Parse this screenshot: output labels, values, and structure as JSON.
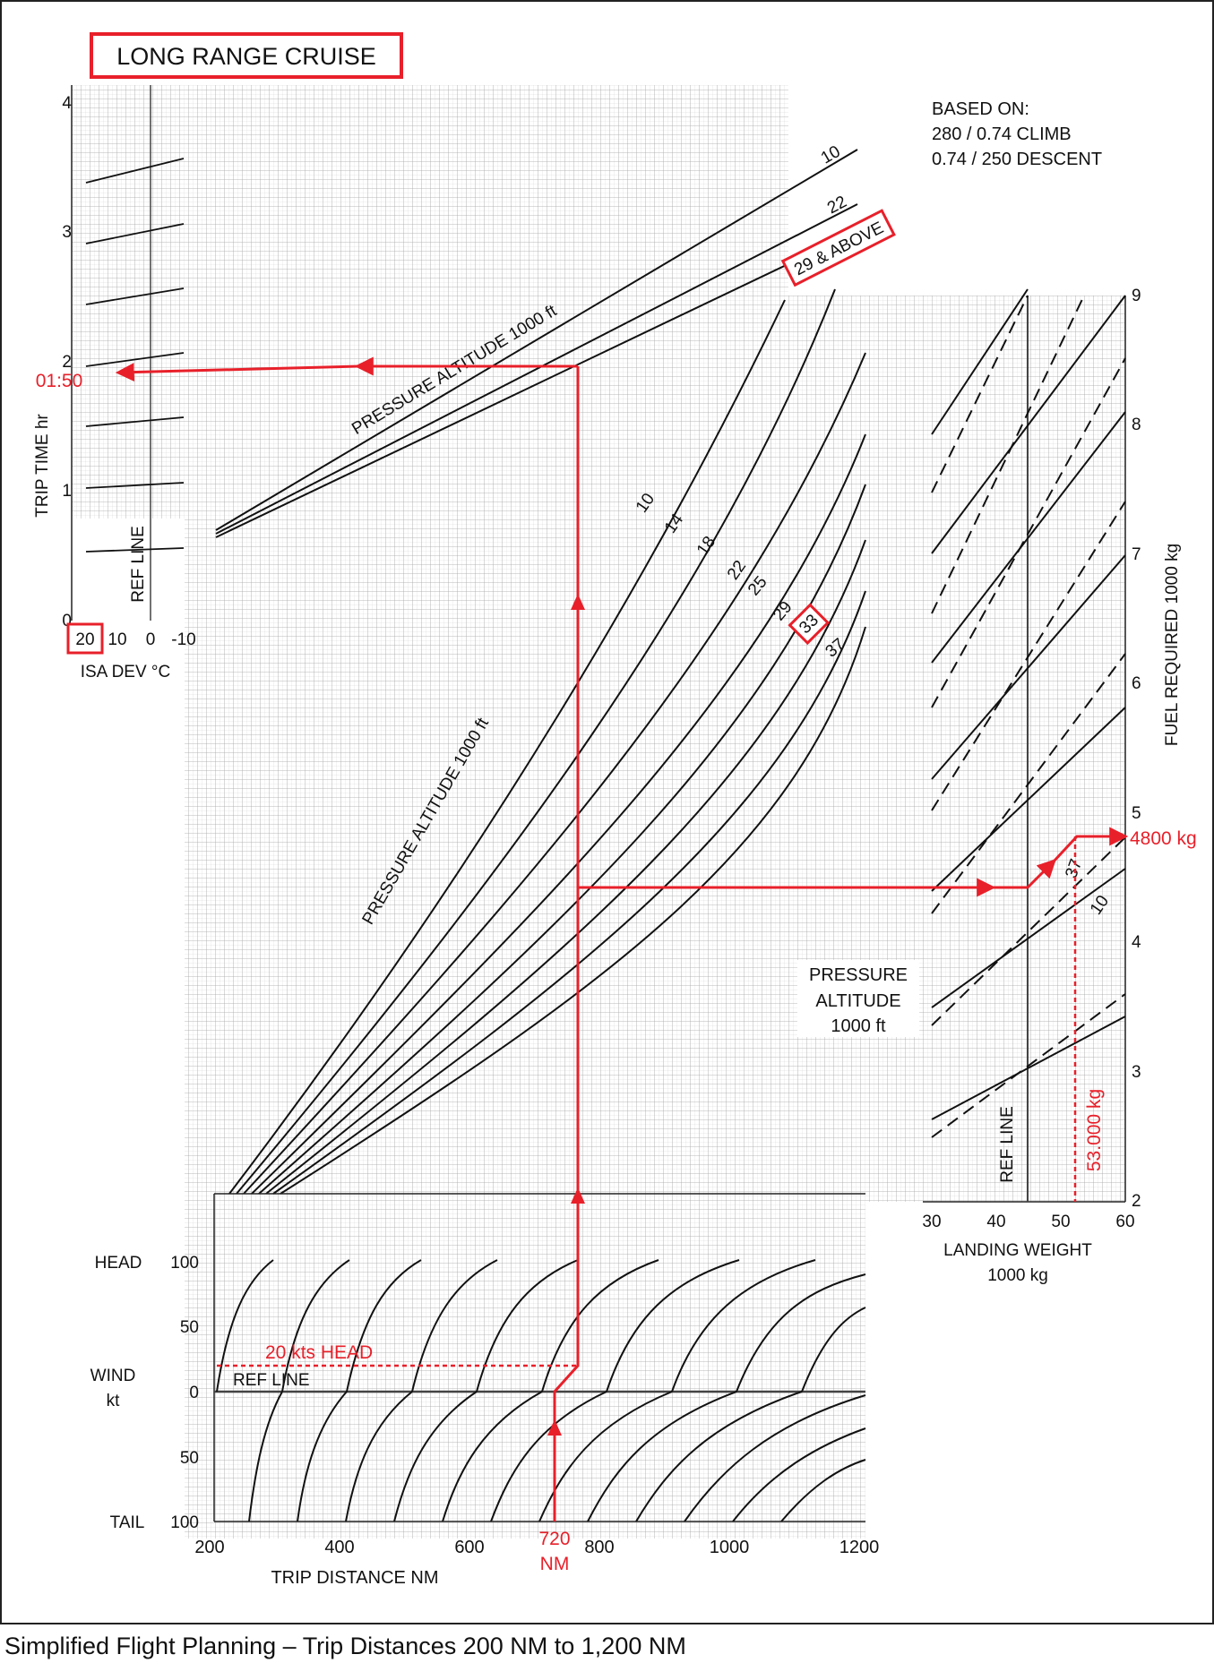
{
  "chart_data": {
    "type": "line",
    "title": "LONG RANGE CRUISE",
    "based_on": [
      "BASED ON:",
      "280 / 0.74 CLIMB",
      "0.74 / 250 DESCENT"
    ],
    "xlabel": "TRIP DISTANCE  NM",
    "x_ticks": [
      "200",
      "400",
      "600",
      "800",
      "1000",
      "1200"
    ],
    "xlim": [
      200,
      1200
    ],
    "trip_time_panel": {
      "ylabel": "TRIP TIME  hr",
      "y_ticks": [
        "0",
        "1",
        "2",
        "3",
        "4"
      ],
      "ylim": [
        0,
        4
      ],
      "isa_label": "ISA DEV °C",
      "isa_ticks": [
        "20",
        "10",
        "0",
        "-10"
      ],
      "ref_line_label": "REF LINE",
      "curve_label": "PRESSURE ALTITUDE  1000 ft",
      "altitude_labels": [
        "10",
        "22",
        "29 & ABOVE"
      ],
      "series": [
        {
          "name": "10",
          "x": [
            200,
            1200
          ],
          "y": [
            0.69,
            3.6
          ]
        },
        {
          "name": "22",
          "x": [
            200,
            1200
          ],
          "y": [
            0.66,
            3.3
          ]
        },
        {
          "name": "29 & ABOVE",
          "x": [
            200,
            1200
          ],
          "y": [
            0.64,
            3.15
          ]
        }
      ]
    },
    "fuel_panel": {
      "curve_label": "PRESSURE ALTITUDE  1000 ft",
      "altitude_labels": [
        "10",
        "14",
        "18",
        "22",
        "25",
        "29",
        "33",
        "37"
      ]
    },
    "landing_weight_panel": {
      "xlabel": "LANDING WEIGHT",
      "xlabel_unit": "1000 kg",
      "x_ticks": [
        "30",
        "40",
        "50",
        "60"
      ],
      "xlim": [
        30,
        60
      ],
      "ylabel": "FUEL REQUIRED  1000 kg",
      "y_ticks": [
        "2",
        "3",
        "4",
        "5",
        "6",
        "7",
        "8",
        "9"
      ],
      "ylim": [
        2,
        9
      ],
      "ref_line_label": "REF LINE",
      "ref_line_weight": 45,
      "legend_title": [
        "PRESSURE",
        "ALTITUDE",
        "1000 ft"
      ],
      "line_labels": [
        "37",
        "10"
      ]
    },
    "wind_panel": {
      "ylabel": [
        "WIND",
        "kt"
      ],
      "head_label": "HEAD",
      "tail_label": "TAIL",
      "y_ticks": [
        "100",
        "50",
        "0",
        "50",
        "100"
      ],
      "ylim": [
        -100,
        100
      ],
      "ref_line_label": "REF LINE"
    },
    "example": {
      "distance_label": [
        "720",
        "NM"
      ],
      "wind_label": "20 kts HEAD",
      "time_result": "01:50",
      "landing_weight_label": "53.000 kg",
      "fuel_result": "4800 kg",
      "isa_dev_highlight": "20",
      "altitude_highlight": "33"
    }
  },
  "caption": "Simplified Flight Planning – Trip Distances 200 NM to 1,200 NM"
}
